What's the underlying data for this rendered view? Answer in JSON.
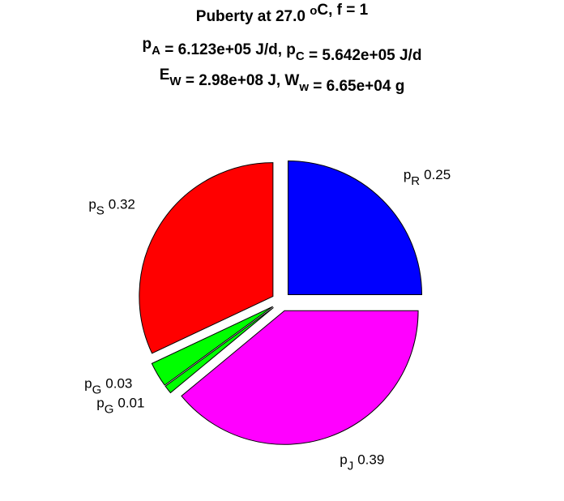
{
  "chart_data": {
    "type": "pie",
    "title": [
      [
        {
          "text": "Puberty at 27.0 "
        },
        {
          "sup": "o"
        },
        {
          "text": "C, f = 1"
        }
      ],
      [
        {
          "text": "p"
        },
        {
          "sub": "A"
        },
        {
          "text": " = 6.123e+05 J/d,  p"
        },
        {
          "sub": "C"
        },
        {
          "text": " = 5.642e+05 J/d"
        }
      ],
      [
        {
          "text": "E"
        },
        {
          "sub": "W"
        },
        {
          "text": " = 2.98e+08 J, W"
        },
        {
          "sub": "w"
        },
        {
          "text": " = 6.65e+04 g"
        }
      ]
    ],
    "categories": [
      {
        "symbol": "p",
        "subscript": "R"
      },
      {
        "symbol": "p",
        "subscript": "J"
      },
      {
        "symbol": "p",
        "subscript": "G"
      },
      {
        "symbol": "p",
        "subscript": "G"
      },
      {
        "symbol": "p",
        "subscript": "S"
      }
    ],
    "values": [
      0.25,
      0.39,
      0.01,
      0.03,
      0.32
    ],
    "colors": [
      "#0000ff",
      "#ff00ff",
      "#00ff00",
      "#00ff00",
      "#ff0000"
    ],
    "explode": true
  }
}
